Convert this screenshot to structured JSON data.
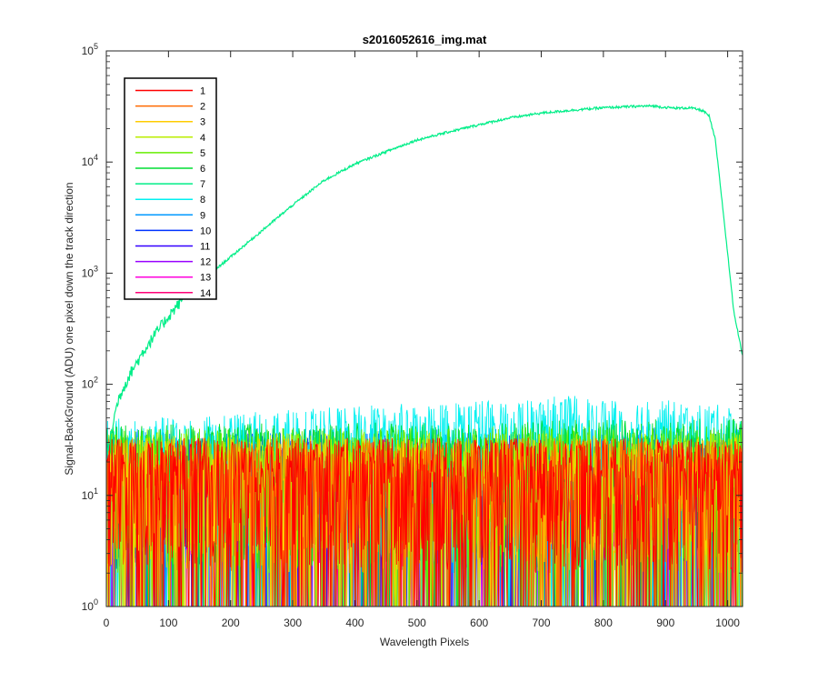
{
  "chart_data": {
    "type": "line",
    "title": "s2016052616_img.mat",
    "xlabel": "Wavelength Pixels",
    "ylabel": "Signal-BackGround (ADU) one pixel down the track direction",
    "xlim": [
      0,
      1024
    ],
    "ylim": [
      1,
      100000
    ],
    "yscale": "log",
    "grid": false,
    "legend_position": "top-left",
    "x_ticks": [
      0,
      100,
      200,
      300,
      400,
      500,
      600,
      700,
      800,
      900,
      1000
    ],
    "y_ticks": [
      1,
      10,
      100,
      1000,
      10000,
      100000
    ],
    "series": [
      {
        "name": "1",
        "color": "#ff0000",
        "profile": "noise",
        "x": [
          0,
          1024
        ],
        "values": [
          20,
          20
        ]
      },
      {
        "name": "2",
        "color": "#ff6a00",
        "profile": "noise",
        "x": [
          0,
          1024
        ],
        "values": [
          20,
          20
        ]
      },
      {
        "name": "3",
        "color": "#ffcc00",
        "profile": "noise",
        "x": [
          0,
          1024
        ],
        "values": [
          20,
          20
        ]
      },
      {
        "name": "4",
        "color": "#bbee00",
        "profile": "noise",
        "x": [
          0,
          1024
        ],
        "values": [
          22,
          22
        ]
      },
      {
        "name": "5",
        "color": "#66ee00",
        "profile": "noise",
        "x": [
          0,
          1024
        ],
        "values": [
          24,
          26
        ]
      },
      {
        "name": "6",
        "color": "#00dd33",
        "profile": "noise",
        "x": [
          0,
          1024
        ],
        "values": [
          26,
          30
        ]
      },
      {
        "name": "7",
        "color": "#00ee88",
        "profile": "signal",
        "x": [
          0,
          5,
          10,
          15,
          20,
          30,
          40,
          50,
          60,
          80,
          100,
          120,
          140,
          160,
          180,
          200,
          250,
          300,
          350,
          400,
          450,
          500,
          550,
          600,
          650,
          700,
          750,
          800,
          850,
          880,
          900,
          920,
          940,
          960,
          970,
          980,
          990,
          1000,
          1010,
          1024
        ],
        "values": [
          22,
          30,
          42,
          58,
          75,
          100,
          130,
          160,
          200,
          290,
          410,
          560,
          730,
          920,
          1130,
          1400,
          2400,
          4100,
          6800,
          9600,
          12400,
          15800,
          18600,
          21700,
          25000,
          27600,
          29300,
          30800,
          31700,
          32000,
          31000,
          30500,
          30800,
          29000,
          26000,
          16000,
          5000,
          1500,
          450,
          180
        ]
      },
      {
        "name": "8",
        "color": "#00f0f0",
        "profile": "noise",
        "x": [
          0,
          150,
          300,
          450,
          600,
          750,
          900,
          1024
        ],
        "values": [
          30,
          32,
          36,
          40,
          44,
          48,
          44,
          38
        ]
      },
      {
        "name": "9",
        "color": "#0099ff",
        "profile": "noise",
        "x": [
          0,
          1024
        ],
        "values": [
          24,
          26
        ]
      },
      {
        "name": "10",
        "color": "#0033ff",
        "profile": "noise",
        "x": [
          0,
          1024
        ],
        "values": [
          22,
          22
        ]
      },
      {
        "name": "11",
        "color": "#3300ff",
        "profile": "noise",
        "x": [
          0,
          1024
        ],
        "values": [
          20,
          20
        ]
      },
      {
        "name": "12",
        "color": "#9900ff",
        "profile": "noise",
        "x": [
          0,
          1024
        ],
        "values": [
          19,
          19
        ]
      },
      {
        "name": "13",
        "color": "#ff00dd",
        "profile": "noise",
        "x": [
          0,
          1024
        ],
        "values": [
          18,
          18
        ]
      },
      {
        "name": "14",
        "color": "#ff0077",
        "profile": "noise",
        "x": [
          0,
          1024
        ],
        "values": [
          18,
          18
        ]
      }
    ]
  }
}
